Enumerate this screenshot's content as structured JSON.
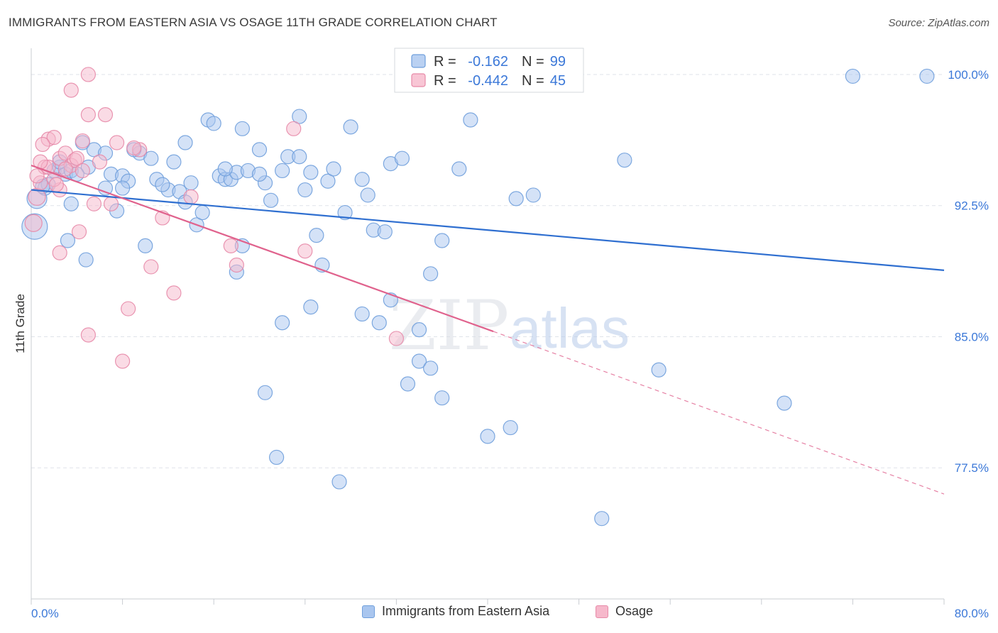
{
  "title": "IMMIGRANTS FROM EASTERN ASIA VS OSAGE 11TH GRADE CORRELATION CHART",
  "source": "Source: ZipAtlas.com",
  "watermark": {
    "zip": "ZIP",
    "atlas": "atlas"
  },
  "colors": {
    "blue_fill": "#a9c6ef",
    "blue_stroke": "#6f9fdc",
    "blue_line": "#2f6fd0",
    "pink_fill": "#f6b8cb",
    "pink_stroke": "#e78aa8",
    "pink_line": "#e0628d",
    "axis_label": "#3b78d8",
    "grid": "#dfe3ea"
  },
  "legend": {
    "rows": [
      {
        "r_label": "R =",
        "r_value": "-0.162",
        "n_label": "N =",
        "n_value": "99"
      },
      {
        "r_label": "R =",
        "r_value": "-0.442",
        "n_label": "N =",
        "n_value": "45"
      }
    ]
  },
  "chart_data": {
    "type": "scatter",
    "ylabel": "11th Grade",
    "xlim": [
      0,
      80
    ],
    "ylim": [
      70.0,
      101.5
    ],
    "x_ticks_labels": [
      "0.0%",
      "80.0%"
    ],
    "y_ticks": [
      77.5,
      85.0,
      92.5,
      100.0
    ],
    "y_ticks_labels": [
      "77.5%",
      "85.0%",
      "92.5%",
      "100.0%"
    ],
    "grid": "horizontal dashed",
    "legend_position": "top-center",
    "series": [
      {
        "name": "Immigrants from Eastern Asia",
        "color": "#a9c6ef",
        "trend": {
          "x": [
            0,
            80
          ],
          "y": [
            93.4,
            88.8
          ],
          "style": "solid"
        },
        "points": [
          [
            0.5,
            92.9,
            14
          ],
          [
            0.3,
            91.3,
            18
          ],
          [
            1.2,
            93.5,
            10
          ],
          [
            1.5,
            93.7,
            10
          ],
          [
            2.0,
            94.5,
            10
          ],
          [
            2.5,
            94.7,
            10
          ],
          [
            3.0,
            94.3,
            10
          ],
          [
            3.5,
            94.5,
            10
          ],
          [
            4.5,
            96.1,
            10
          ],
          [
            5.0,
            94.7,
            10
          ],
          [
            5.5,
            95.7,
            10
          ],
          [
            6.5,
            93.5,
            10
          ],
          [
            7.0,
            94.3,
            10
          ],
          [
            8.0,
            94.2,
            10
          ],
          [
            8.5,
            93.9,
            10
          ],
          [
            9.5,
            95.5,
            10
          ],
          [
            10.5,
            95.2,
            10
          ],
          [
            11.0,
            94.0,
            10
          ],
          [
            12.0,
            93.4,
            10
          ],
          [
            12.5,
            95.0,
            10
          ],
          [
            13.0,
            93.3,
            10
          ],
          [
            13.5,
            96.1,
            10
          ],
          [
            14.0,
            93.8,
            10
          ],
          [
            14.5,
            91.4,
            10
          ],
          [
            15.0,
            92.1,
            10
          ],
          [
            15.5,
            97.4,
            10
          ],
          [
            16.0,
            97.2,
            10
          ],
          [
            16.5,
            94.2,
            10
          ],
          [
            17.0,
            94.0,
            10
          ],
          [
            17.5,
            94.0,
            10
          ],
          [
            18.0,
            94.4,
            10
          ],
          [
            18.5,
            96.9,
            10
          ],
          [
            19.0,
            94.5,
            10
          ],
          [
            20.0,
            95.7,
            10
          ],
          [
            20.5,
            93.8,
            10
          ],
          [
            21.0,
            92.8,
            10
          ],
          [
            22.0,
            94.5,
            10
          ],
          [
            22.5,
            95.3,
            10
          ],
          [
            23.5,
            97.6,
            10
          ],
          [
            23.5,
            95.3,
            10
          ],
          [
            24.0,
            93.4,
            10
          ],
          [
            24.5,
            94.4,
            10
          ],
          [
            25.0,
            90.8,
            10
          ],
          [
            26.0,
            93.9,
            10
          ],
          [
            27.5,
            92.1,
            10
          ],
          [
            28.0,
            97.0,
            10
          ],
          [
            29.0,
            94.0,
            10
          ],
          [
            29.5,
            93.1,
            10
          ],
          [
            30.0,
            91.1,
            10
          ],
          [
            31.0,
            91.0,
            10
          ],
          [
            31.5,
            94.9,
            10
          ],
          [
            32.5,
            95.2,
            10
          ],
          [
            35.0,
            88.6,
            10
          ],
          [
            36.0,
            90.5,
            10
          ],
          [
            37.5,
            94.6,
            10
          ],
          [
            38.5,
            97.4,
            10
          ],
          [
            42.5,
            92.9,
            10
          ],
          [
            44.0,
            93.1,
            10
          ],
          [
            52.0,
            95.1,
            10
          ],
          [
            55.0,
            83.1,
            10
          ],
          [
            66.0,
            81.2,
            10
          ],
          [
            72.0,
            99.9,
            10
          ],
          [
            78.5,
            99.9,
            10
          ],
          [
            40.0,
            100.0,
            10
          ],
          [
            4.8,
            89.4,
            10
          ],
          [
            3.2,
            90.5,
            10
          ],
          [
            7.5,
            92.2,
            10
          ],
          [
            10.0,
            90.2,
            10
          ],
          [
            18.5,
            90.2,
            10
          ],
          [
            18.0,
            88.7,
            10
          ],
          [
            22.0,
            85.8,
            10
          ],
          [
            24.5,
            86.7,
            10
          ],
          [
            25.5,
            89.1,
            10
          ],
          [
            29.0,
            86.3,
            10
          ],
          [
            30.5,
            85.8,
            10
          ],
          [
            31.5,
            87.1,
            10
          ],
          [
            33.0,
            82.3,
            10
          ],
          [
            34.0,
            83.6,
            10
          ],
          [
            35.0,
            83.2,
            10
          ],
          [
            36.0,
            81.5,
            10
          ],
          [
            20.5,
            81.8,
            10
          ],
          [
            21.5,
            78.1,
            10
          ],
          [
            27.0,
            76.7,
            10
          ],
          [
            40.0,
            79.3,
            10
          ],
          [
            42.0,
            79.8,
            10
          ],
          [
            50.0,
            74.6,
            10
          ],
          [
            34.0,
            85.4,
            10
          ],
          [
            4.0,
            94.3,
            10
          ],
          [
            1.0,
            93.6,
            10
          ],
          [
            2.5,
            95.0,
            10
          ],
          [
            6.5,
            95.5,
            10
          ],
          [
            8.0,
            93.5,
            10
          ],
          [
            9.0,
            95.7,
            10
          ],
          [
            11.5,
            93.7,
            10
          ],
          [
            13.5,
            92.7,
            10
          ],
          [
            17.0,
            94.6,
            10
          ],
          [
            3.5,
            92.6,
            10
          ],
          [
            20.0,
            94.3,
            10
          ],
          [
            26.5,
            94.6,
            10
          ]
        ]
      },
      {
        "name": "Osage",
        "color": "#f6b8cb",
        "trend": {
          "x": [
            0,
            40.5
          ],
          "y": [
            94.8,
            85.3
          ],
          "style": "solid",
          "extension": {
            "x": [
              40.5,
              80
            ],
            "y": [
              85.3,
              76.0
            ],
            "style": "dashed"
          }
        },
        "points": [
          [
            0.2,
            91.5,
            12
          ],
          [
            0.5,
            93.0,
            12
          ],
          [
            0.8,
            93.8,
            10
          ],
          [
            1.2,
            94.7,
            10
          ],
          [
            1.5,
            96.3,
            10
          ],
          [
            2.0,
            96.4,
            10
          ],
          [
            2.5,
            95.2,
            10
          ],
          [
            3.0,
            95.5,
            10
          ],
          [
            3.5,
            94.8,
            10
          ],
          [
            3.8,
            95.1,
            10
          ],
          [
            4.0,
            95.2,
            10
          ],
          [
            4.5,
            94.5,
            10
          ],
          [
            5.0,
            97.7,
            10
          ],
          [
            3.5,
            99.1,
            10
          ],
          [
            5.0,
            100.0,
            10
          ],
          [
            6.5,
            97.7,
            10
          ],
          [
            7.5,
            96.1,
            10
          ],
          [
            9.5,
            95.7,
            10
          ],
          [
            2.5,
            93.4,
            10
          ],
          [
            4.2,
            91.0,
            10
          ],
          [
            2.5,
            89.8,
            10
          ],
          [
            7.0,
            92.6,
            10
          ],
          [
            5.5,
            92.6,
            10
          ],
          [
            10.5,
            89.0,
            10
          ],
          [
            11.5,
            91.8,
            10
          ],
          [
            12.5,
            87.5,
            10
          ],
          [
            14.0,
            93.0,
            10
          ],
          [
            8.5,
            86.6,
            10
          ],
          [
            5.0,
            85.1,
            10
          ],
          [
            8.0,
            83.6,
            10
          ],
          [
            17.5,
            90.2,
            10
          ],
          [
            18.0,
            89.1,
            10
          ],
          [
            23.0,
            96.9,
            10
          ],
          [
            24.0,
            89.9,
            10
          ],
          [
            32.0,
            84.9,
            10
          ],
          [
            1.0,
            96.0,
            10
          ],
          [
            2.0,
            94.0,
            10
          ],
          [
            1.5,
            94.7,
            10
          ],
          [
            0.8,
            95.0,
            10
          ],
          [
            4.5,
            96.2,
            10
          ],
          [
            6.0,
            95.0,
            10
          ],
          [
            3.0,
            94.6,
            10
          ],
          [
            2.2,
            93.7,
            10
          ],
          [
            9.0,
            95.8,
            10
          ],
          [
            0.5,
            94.2,
            10
          ]
        ]
      }
    ]
  },
  "legend_bottom": [
    {
      "label": "Immigrants from Eastern Asia"
    },
    {
      "label": "Osage"
    }
  ]
}
